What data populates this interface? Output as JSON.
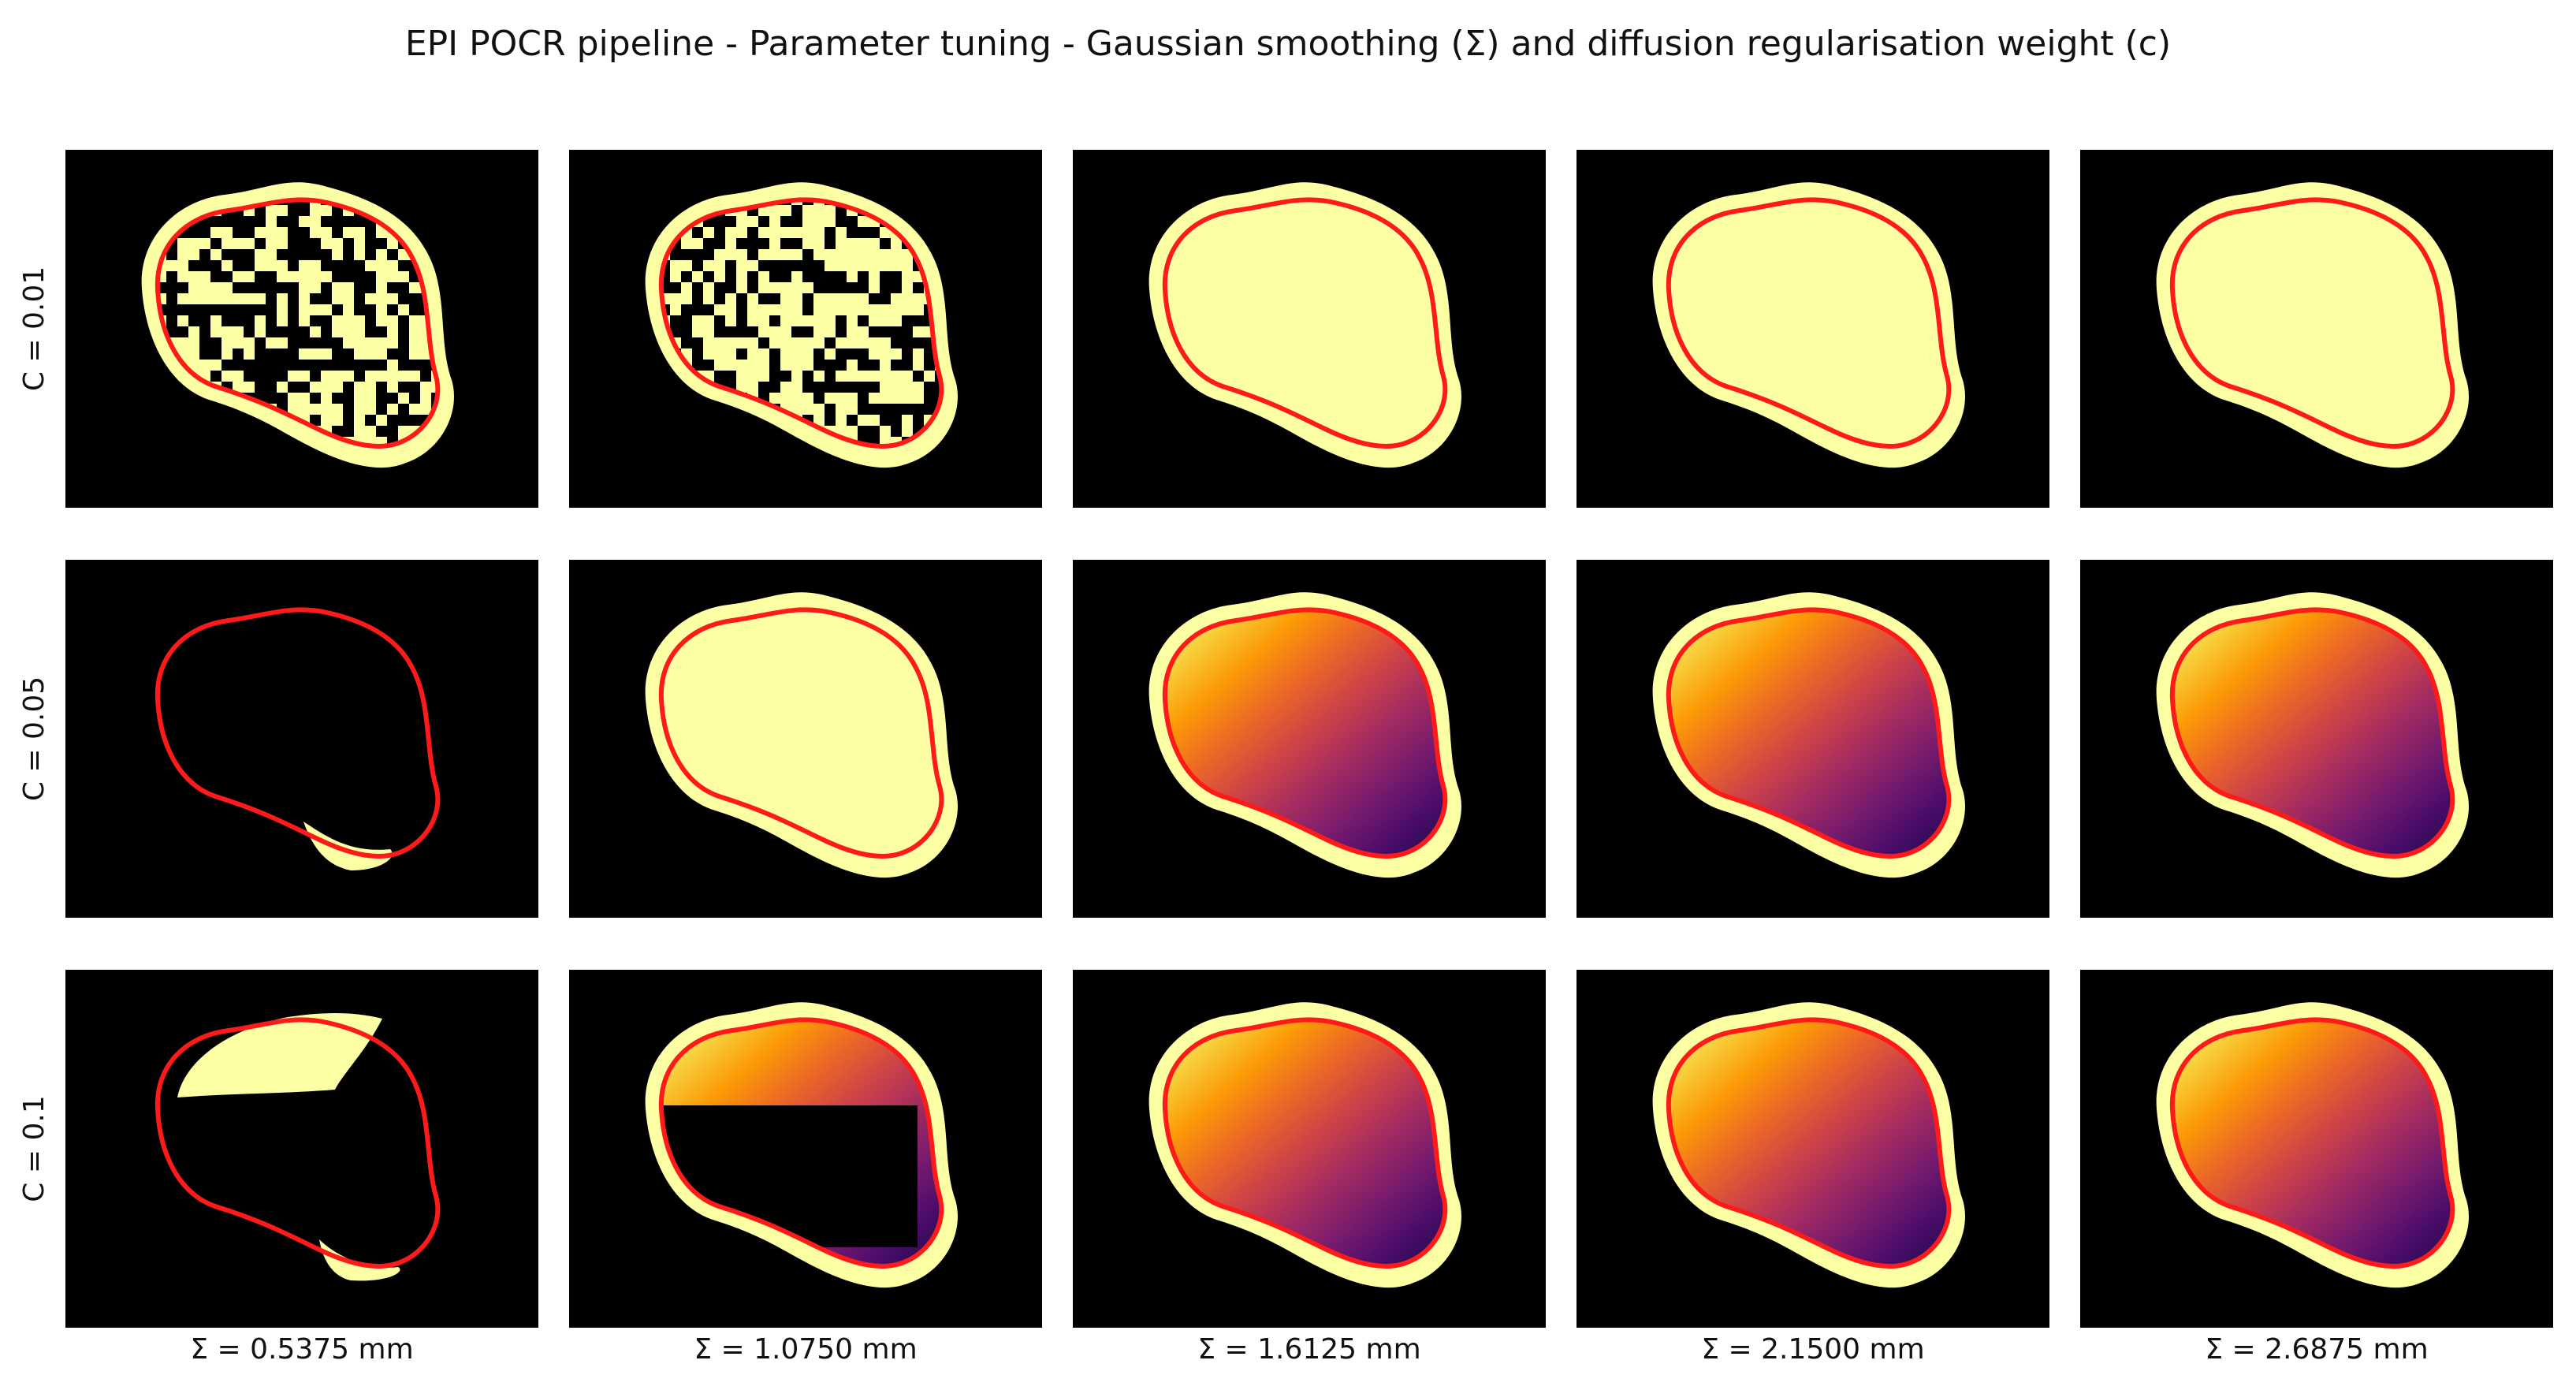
{
  "figure": {
    "title": "EPI POCR pipeline - Parameter tuning - Gaussian smoothing (Σ) and diffusion regularisation weight (c)"
  },
  "grid": {
    "row_labels": [
      "C = 0.01",
      "C = 0.05",
      "C = 0.1"
    ],
    "col_labels": [
      "Σ = 0.5375 mm",
      "Σ = 1.0750 mm",
      "Σ = 1.6125 mm",
      "Σ = 2.1500 mm",
      "Σ = 2.6875 mm"
    ],
    "cells": [
      [
        {
          "row": "C = 0.01",
          "col": "Σ = 0.5375 mm",
          "pattern": "checkered-noise"
        },
        {
          "row": "C = 0.01",
          "col": "Σ = 1.0750 mm",
          "pattern": "checkered-noise"
        },
        {
          "row": "C = 0.01",
          "col": "Σ = 1.6125 mm",
          "pattern": "filled"
        },
        {
          "row": "C = 0.01",
          "col": "Σ = 2.1500 mm",
          "pattern": "filled"
        },
        {
          "row": "C = 0.01",
          "col": "Σ = 2.6875 mm",
          "pattern": "filled"
        }
      ],
      [
        {
          "row": "C = 0.05",
          "col": "Σ = 0.5375 mm",
          "pattern": "outline-only"
        },
        {
          "row": "C = 0.05",
          "col": "Σ = 1.0750 mm",
          "pattern": "filled"
        },
        {
          "row": "C = 0.05",
          "col": "Σ = 1.6125 mm",
          "pattern": "gradient"
        },
        {
          "row": "C = 0.05",
          "col": "Σ = 2.1500 mm",
          "pattern": "gradient"
        },
        {
          "row": "C = 0.05",
          "col": "Σ = 2.6875 mm",
          "pattern": "gradient"
        }
      ],
      [
        {
          "row": "C = 0.1",
          "col": "Σ = 0.5375 mm",
          "pattern": "partial"
        },
        {
          "row": "C = 0.1",
          "col": "Σ = 1.0750 mm",
          "pattern": "gradient-partial"
        },
        {
          "row": "C = 0.1",
          "col": "Σ = 1.6125 mm",
          "pattern": "gradient"
        },
        {
          "row": "C = 0.1",
          "col": "Σ = 2.1500 mm",
          "pattern": "gradient"
        },
        {
          "row": "C = 0.1",
          "col": "Σ = 2.6875 mm",
          "pattern": "gradient"
        }
      ]
    ]
  },
  "colors": {
    "background": "#000000",
    "fill": "#fcffa4",
    "contour": "#ff1a1a",
    "gradient_stops": [
      "#fcffa4",
      "#f7d13d",
      "#fb9b06",
      "#ed6925",
      "#cf4446",
      "#a52c60",
      "#781c6d",
      "#4a0c6b",
      "#1b0c41"
    ]
  }
}
